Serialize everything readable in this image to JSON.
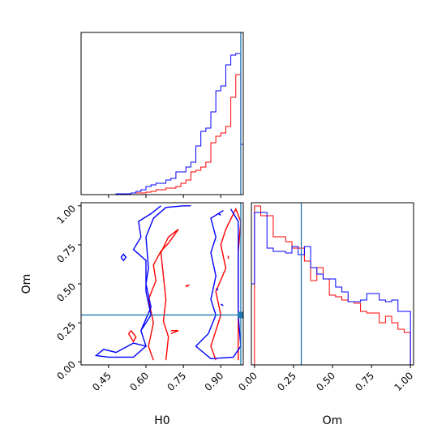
{
  "chart_data": [
    {
      "type": "histogram",
      "panel": "H0 marginal",
      "xlim": [
        0.34,
        0.99
      ],
      "bin_edges": [
        0.34,
        0.36,
        0.38,
        0.4,
        0.42,
        0.44,
        0.46,
        0.48,
        0.5,
        0.52,
        0.54,
        0.56,
        0.58,
        0.6,
        0.62,
        0.64,
        0.66,
        0.68,
        0.7,
        0.72,
        0.74,
        0.76,
        0.78,
        0.8,
        0.82,
        0.84,
        0.86,
        0.88,
        0.9,
        0.92,
        0.94,
        0.96,
        0.98,
        0.99
      ],
      "series": [
        {
          "color": "#ff0000",
          "counts": [
            0,
            0,
            0,
            0,
            0,
            0,
            0,
            0.005,
            0.005,
            0.005,
            0.01,
            0.01,
            0.01,
            0.015,
            0.02,
            0.03,
            0.03,
            0.04,
            0.04,
            0.05,
            0.07,
            0.09,
            0.14,
            0.15,
            0.17,
            0.2,
            0.32,
            0.36,
            0.38,
            0.42,
            0.6,
            0.74,
            0.0
          ]
        },
        {
          "color": "#0000ff",
          "counts": [
            0,
            0,
            0,
            0,
            0,
            0,
            0,
            0.005,
            0.005,
            0.005,
            0.01,
            0.02,
            0.03,
            0.05,
            0.06,
            0.07,
            0.07,
            0.09,
            0.1,
            0.14,
            0.14,
            0.17,
            0.2,
            0.3,
            0.39,
            0.41,
            0.51,
            0.64,
            0.67,
            0.8,
            0.86,
            0.87,
            0.31
          ]
        }
      ],
      "truth": 0.98,
      "xticks": [
        0.45,
        0.6,
        0.75,
        0.9
      ]
    },
    {
      "type": "histogram",
      "panel": "Om marginal",
      "xlim": [
        -0.02,
        1.02
      ],
      "bin_edges": [
        -0.02,
        0.0,
        0.04,
        0.08,
        0.12,
        0.16,
        0.2,
        0.24,
        0.28,
        0.32,
        0.36,
        0.4,
        0.44,
        0.48,
        0.52,
        0.56,
        0.6,
        0.64,
        0.68,
        0.72,
        0.76,
        0.8,
        0.84,
        0.88,
        0.92,
        0.96,
        1.0
      ],
      "series": [
        {
          "color": "#ff0000",
          "counts": [
            0.0,
            0.98,
            0.92,
            0.92,
            0.79,
            0.79,
            0.76,
            0.72,
            0.72,
            0.64,
            0.52,
            0.6,
            0.53,
            0.43,
            0.42,
            0.4,
            0.39,
            0.38,
            0.33,
            0.32,
            0.32,
            0.26,
            0.3,
            0.26,
            0.22,
            0.2
          ]
        },
        {
          "color": "#0000ff",
          "counts": [
            0.5,
            0.94,
            0.94,
            0.72,
            0.7,
            0.7,
            0.69,
            0.73,
            0.68,
            0.73,
            0.6,
            0.56,
            0.53,
            0.53,
            0.48,
            0.45,
            0.39,
            0.39,
            0.4,
            0.44,
            0.44,
            0.4,
            0.39,
            0.4,
            0.33,
            0.33
          ]
        }
      ],
      "truth": 0.3,
      "xticks": [
        0.0,
        0.25,
        0.5,
        0.75,
        1.0
      ],
      "xlabel": "Om"
    },
    {
      "type": "contour",
      "panel": "H0 vs Om",
      "xlim": [
        0.34,
        0.99
      ],
      "ylim": [
        -0.02,
        1.02
      ],
      "xlabel": "H0",
      "ylabel": "Om",
      "xticks": [
        0.45,
        0.6,
        0.75,
        0.9
      ],
      "yticks": [
        0.0,
        0.25,
        0.5,
        0.75,
        1.0
      ],
      "truth": {
        "x": 0.98,
        "y": 0.3
      },
      "contours": [
        {
          "color": "#ff0000",
          "paths": [
            [
              [
                0.63,
                0.01
              ],
              [
                0.61,
                0.1
              ],
              [
                0.63,
                0.25
              ],
              [
                0.61,
                0.4
              ],
              [
                0.64,
                0.52
              ],
              [
                0.63,
                0.62
              ],
              [
                0.66,
                0.71
              ],
              [
                0.69,
                0.76
              ],
              [
                0.73,
                0.85
              ],
              [
                0.69,
                0.8
              ],
              [
                0.66,
                0.7
              ],
              [
                0.67,
                0.55
              ],
              [
                0.68,
                0.4
              ],
              [
                0.67,
                0.26
              ],
              [
                0.69,
                0.16
              ],
              [
                0.68,
                0.01
              ]
            ],
            [
              [
                0.88,
                0.01
              ],
              [
                0.86,
                0.1
              ],
              [
                0.88,
                0.2
              ],
              [
                0.9,
                0.3
              ],
              [
                0.88,
                0.45
              ],
              [
                0.92,
                0.6
              ],
              [
                0.9,
                0.75
              ],
              [
                0.92,
                0.85
              ],
              [
                0.96,
                0.98
              ],
              [
                0.98,
                0.9
              ],
              [
                0.97,
                0.7
              ],
              [
                0.97,
                0.5
              ],
              [
                0.97,
                0.3
              ],
              [
                0.97,
                0.1
              ],
              [
                0.97,
                0.01
              ]
            ],
            [
              [
                0.53,
                0.18
              ],
              [
                0.55,
                0.13
              ],
              [
                0.56,
                0.16
              ],
              [
                0.54,
                0.2
              ],
              [
                0.53,
                0.18
              ]
            ],
            [
              [
                0.7,
                0.18
              ],
              [
                0.73,
                0.2
              ],
              [
                0.7,
                0.2
              ]
            ],
            [
              [
                0.76,
                0.48
              ],
              [
                0.77,
                0.49
              ],
              [
                0.76,
                0.49
              ]
            ],
            [
              [
                0.93,
                0.68
              ],
              [
                0.93,
                0.66
              ]
            ]
          ]
        },
        {
          "color": "#0000ff",
          "paths": [
            [
              [
                0.66,
                1.0
              ],
              [
                0.62,
                0.95
              ],
              [
                0.57,
                0.9
              ],
              [
                0.58,
                0.8
              ],
              [
                0.55,
                0.72
              ],
              [
                0.6,
                0.65
              ],
              [
                0.6,
                0.45
              ],
              [
                0.62,
                0.3
              ],
              [
                0.58,
                0.2
              ],
              [
                0.6,
                0.1
              ],
              [
                0.55,
                0.03
              ],
              [
                0.45,
                0.03
              ],
              [
                0.4,
                0.04
              ],
              [
                0.43,
                0.08
              ],
              [
                0.48,
                0.06
              ],
              [
                0.55,
                0.12
              ],
              [
                0.6,
                0.1
              ],
              [
                0.58,
                0.2
              ],
              [
                0.62,
                0.35
              ],
              [
                0.6,
                0.5
              ],
              [
                0.61,
                0.6
              ],
              [
                0.6,
                0.8
              ],
              [
                0.63,
                0.92
              ],
              [
                0.68,
                0.99
              ],
              [
                0.75,
                1.0
              ],
              [
                0.78,
                1.0
              ]
            ],
            [
              [
                0.91,
                0.97
              ],
              [
                0.86,
                0.92
              ],
              [
                0.88,
                0.8
              ],
              [
                0.86,
                0.7
              ],
              [
                0.88,
                0.55
              ],
              [
                0.86,
                0.4
              ],
              [
                0.88,
                0.3
              ],
              [
                0.85,
                0.18
              ],
              [
                0.8,
                0.1
              ],
              [
                0.86,
                0.02
              ],
              [
                0.95,
                0.03
              ],
              [
                0.98,
                0.1
              ],
              [
                0.97,
                0.3
              ],
              [
                0.97,
                0.5
              ],
              [
                0.97,
                0.7
              ],
              [
                0.97,
                0.9
              ],
              [
                0.94,
                0.98
              ]
            ],
            [
              [
                0.5,
                0.67
              ],
              [
                0.51,
                0.65
              ],
              [
                0.52,
                0.67
              ],
              [
                0.51,
                0.69
              ],
              [
                0.5,
                0.67
              ]
            ],
            [
              [
                0.89,
                0.95
              ],
              [
                0.9,
                0.94
              ]
            ],
            [
              [
                0.88,
                0.47
              ],
              [
                0.89,
                0.46
              ]
            ],
            [
              [
                0.9,
                0.37
              ],
              [
                0.91,
                0.36
              ]
            ]
          ]
        }
      ]
    }
  ]
}
